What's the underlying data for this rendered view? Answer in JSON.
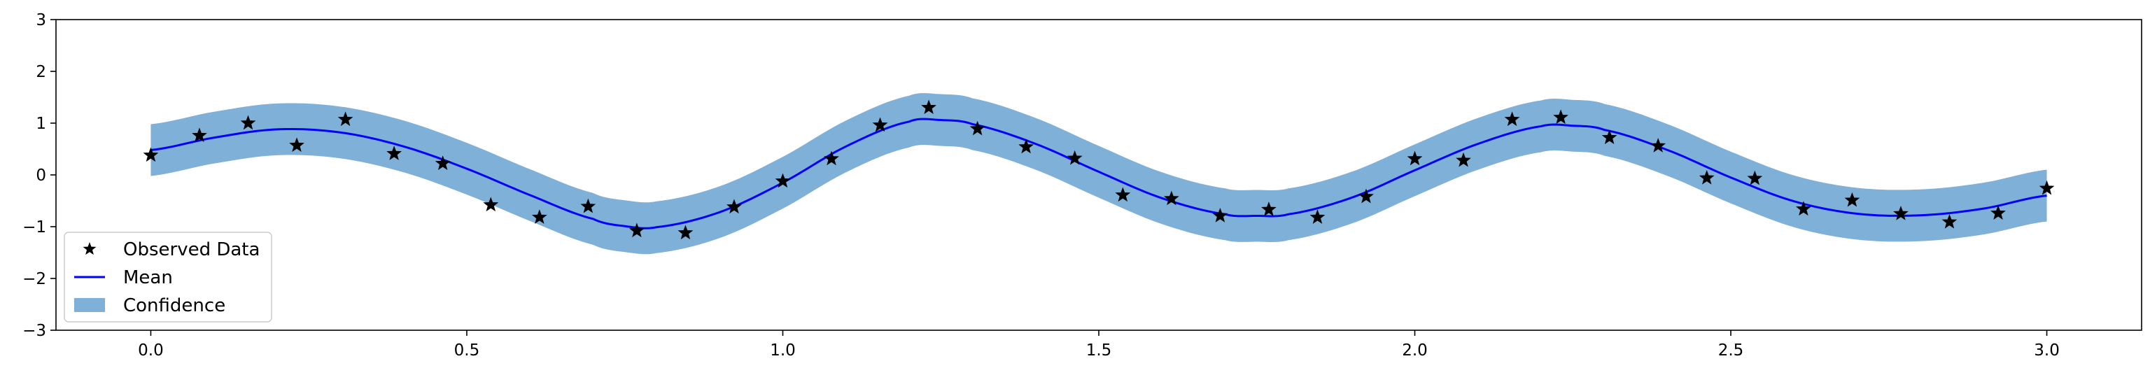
{
  "chart_data": {
    "type": "line",
    "title": "",
    "xlabel": "",
    "ylabel": "",
    "xlim": [
      -0.15,
      3.15
    ],
    "ylim": [
      -3,
      3
    ],
    "xticks": [
      "0.0",
      "0.5",
      "1.0",
      "1.5",
      "2.0",
      "2.5",
      "3.0"
    ],
    "yticks": [
      "-3",
      "-2",
      "-1",
      "0",
      "1",
      "2",
      "3"
    ],
    "grid": false,
    "legend_position": "lower-left",
    "colors": {
      "observed": "#000000",
      "mean": "#0000ff",
      "confidence": "#7fb0d8"
    },
    "series": [
      {
        "name": "Observed Data",
        "kind": "scatter",
        "marker": "star",
        "x": [
          0.0,
          0.077,
          0.154,
          0.231,
          0.308,
          0.385,
          0.462,
          0.538,
          0.615,
          0.692,
          0.769,
          0.846,
          0.923,
          1.0,
          1.077,
          1.154,
          1.231,
          1.308,
          1.385,
          1.462,
          1.538,
          1.615,
          1.692,
          1.769,
          1.846,
          1.923,
          2.0,
          2.077,
          2.154,
          2.231,
          2.308,
          2.385,
          2.462,
          2.538,
          2.615,
          2.692,
          2.769,
          2.846,
          2.923,
          3.0
        ],
        "y": [
          0.38,
          0.76,
          1.0,
          0.57,
          1.07,
          0.41,
          0.22,
          -0.58,
          -0.82,
          -0.61,
          -1.08,
          -1.12,
          -0.62,
          -0.12,
          0.31,
          0.96,
          1.3,
          0.89,
          0.54,
          0.32,
          -0.39,
          -0.46,
          -0.79,
          -0.67,
          -0.82,
          -0.42,
          0.31,
          0.28,
          1.07,
          1.11,
          0.72,
          0.56,
          -0.06,
          -0.07,
          -0.66,
          -0.49,
          -0.75,
          -0.91,
          -0.74,
          -0.26
        ]
      },
      {
        "name": "Mean",
        "kind": "line",
        "x": [
          0.0,
          0.1,
          0.2,
          0.3,
          0.4,
          0.5,
          0.6,
          0.7,
          0.75,
          0.8,
          0.9,
          1.0,
          1.1,
          1.2,
          1.25,
          1.3,
          1.4,
          1.5,
          1.6,
          1.7,
          1.75,
          1.8,
          1.9,
          2.0,
          2.1,
          2.2,
          2.25,
          2.3,
          2.4,
          2.5,
          2.6,
          2.7,
          2.8,
          2.9,
          3.0
        ],
        "y": [
          0.48,
          0.72,
          0.88,
          0.82,
          0.55,
          0.12,
          -0.39,
          -0.85,
          -0.99,
          -1.01,
          -0.72,
          -0.15,
          0.55,
          1.03,
          1.06,
          0.98,
          0.6,
          0.06,
          -0.45,
          -0.76,
          -0.79,
          -0.76,
          -0.44,
          0.09,
          0.6,
          0.94,
          0.95,
          0.87,
          0.48,
          -0.05,
          -0.51,
          -0.75,
          -0.78,
          -0.65,
          -0.4
        ]
      },
      {
        "name": "Confidence",
        "kind": "band",
        "halfwidth": 0.5
      }
    ]
  }
}
